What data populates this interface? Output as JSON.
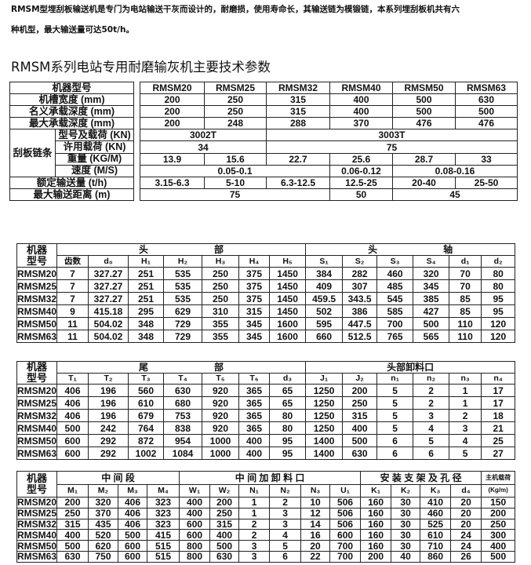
{
  "intro": {
    "lines": [
      "RMSM型埋刮板输送机是专门为电站输送干灰而设计的，耐磨损，使用寿命长，其输送链为模锻链，本系列埋刮板机共有六",
      "种机型，最大输送量可达50t/h。"
    ]
  },
  "title": "RMSM系列电站专用耐磨输灰机主要技术参数",
  "spec_labels": [
    [
      {
        "v": "机器型号",
        "cs": 2
      }
    ],
    [
      {
        "v": "机槽宽度 (mm)",
        "cs": 2
      }
    ],
    [
      {
        "v": "名义承载深度 (mm)",
        "cs": 2
      }
    ],
    [
      {
        "v": "最大承载深度 (mm)",
        "cs": 2
      }
    ],
    [
      {
        "v": "刮板链条",
        "rs": 4
      },
      {
        "v": "型号及载荷 (KN)"
      }
    ],
    [
      {
        "v": "许用载荷 (KN)"
      }
    ],
    [
      {
        "v": "重量 (KG/M)"
      }
    ],
    [
      {
        "v": "速度 (M/S)"
      }
    ],
    [
      {
        "v": "额定输送量 (t/h)",
        "cs": 2
      }
    ],
    [
      {
        "v": "最大输送距离 (m)",
        "cs": 2
      }
    ]
  ],
  "spec_values": [
    [
      "RMSM20",
      "RMSM25",
      "RMSM32",
      "RMSM40",
      "RMSM50",
      "RMSM63"
    ],
    [
      "200",
      "250",
      "315",
      "400",
      "500",
      "630"
    ],
    [
      "200",
      "250",
      "315",
      "400",
      "500",
      "500"
    ],
    [
      "200",
      "248",
      "288",
      "370",
      "476",
      "476"
    ],
    [
      {
        "v": "3002T",
        "cs": 2
      },
      {
        "v": "3003T",
        "cs": 4
      }
    ],
    [
      {
        "v": "34",
        "cs": 2
      },
      {
        "v": "75",
        "cs": 4
      }
    ],
    [
      "13.9",
      "15.6",
      "22.7",
      "25.6",
      "28.7",
      "33"
    ],
    [
      {
        "v": "0.05-0.1",
        "cs": 3
      },
      {
        "v": "0.06-0.12"
      },
      {
        "v": "0.08-0.16",
        "cs": 2
      }
    ],
    [
      "3.15-6.3",
      "5-10",
      "6.3-12.5",
      "12.5-25",
      "20-40",
      "25-50"
    ],
    [
      {
        "v": "75",
        "cs": 3
      },
      {
        "v": "50"
      },
      {
        "v": "45",
        "cs": 2
      }
    ]
  ],
  "head_table": {
    "header1": [
      {
        "v": "机器\n型号",
        "rs": 2
      },
      {
        "v": "头　　　　　　　部",
        "cs": 7
      },
      {
        "v": "头　　　　　　　轴",
        "cs": 6
      }
    ],
    "header2": [
      "齿数",
      "d₀",
      "H₁",
      "H₂",
      "H₃",
      "H₄",
      "H₅",
      "S₁",
      "S₂",
      "S₃",
      "S₄",
      "d₁",
      "d₂"
    ],
    "rows": [
      [
        "RMSM20",
        "7",
        "327.27",
        "251",
        "535",
        "250",
        "375",
        "1450",
        "384",
        "282",
        "460",
        "320",
        "70",
        "80"
      ],
      [
        "RMSM25",
        "7",
        "327.27",
        "251",
        "535",
        "250",
        "375",
        "1450",
        "409",
        "307",
        "485",
        "345",
        "70",
        "80"
      ],
      [
        "RMSM32",
        "7",
        "327.27",
        "251",
        "535",
        "250",
        "375",
        "1450",
        "459.5",
        "343.5",
        "545",
        "385",
        "85",
        "95"
      ],
      [
        "RMSM40",
        "9",
        "415.18",
        "295",
        "629",
        "310",
        "315",
        "1450",
        "502",
        "386",
        "585",
        "427",
        "85",
        "95"
      ],
      [
        "RMSM50",
        "11",
        "504.02",
        "348",
        "729",
        "355",
        "345",
        "1600",
        "595",
        "447.5",
        "700",
        "500",
        "110",
        "120"
      ],
      [
        "RMSM63",
        "11",
        "504.02",
        "348",
        "729",
        "355",
        "345",
        "1600",
        "660",
        "512.5",
        "765",
        "565",
        "110",
        "120"
      ]
    ]
  },
  "tail_table": {
    "header1": [
      {
        "v": "机器\n型号",
        "rs": 2
      },
      {
        "v": "尾　　　　　　　部",
        "cs": 7
      },
      {
        "v": "头部卸料口",
        "cs": 6
      }
    ],
    "header2": [
      "T₁",
      "T₂",
      "T₃",
      "T₄",
      "T₅",
      "T₆",
      "d₃",
      "J₁",
      "J₂",
      "n₁",
      "n₂",
      "n₃",
      "n₄"
    ],
    "rows": [
      [
        "RMSM20",
        "406",
        "196",
        "560",
        "630",
        "920",
        "365",
        "65",
        "1250",
        "200",
        "5",
        "2",
        "1",
        "17"
      ],
      [
        "RMSM25",
        "406",
        "196",
        "610",
        "680",
        "920",
        "365",
        "65",
        "1250",
        "250",
        "5",
        "2",
        "1",
        "17"
      ],
      [
        "RMSM32",
        "406",
        "196",
        "679",
        "753",
        "920",
        "365",
        "80",
        "1250",
        "315",
        "5",
        "3",
        "2",
        "18"
      ],
      [
        "RMSM40",
        "500",
        "242",
        "764",
        "838",
        "920",
        "365",
        "80",
        "1250",
        "400",
        "5",
        "4",
        "3",
        "21"
      ],
      [
        "RMSM50",
        "600",
        "292",
        "872",
        "954",
        "1000",
        "400",
        "95",
        "1400",
        "500",
        "6",
        "5",
        "4",
        "25"
      ],
      [
        "RMSM63",
        "600",
        "292",
        "1002",
        "1084",
        "1000",
        "400",
        "95",
        "1400",
        "630",
        "6",
        "6",
        "5",
        "27"
      ]
    ]
  },
  "mid_table": {
    "header1": [
      {
        "v": "机器\n型号",
        "rs": 2
      },
      {
        "v": "中 间 段",
        "cs": 4
      },
      {
        "v": "中 间 加 卸 料 口",
        "cs": 6
      },
      {
        "v": "安 装 支 架 及 孔 径",
        "cs": 4
      },
      {
        "v": "主机载荷",
        "small": true
      }
    ],
    "header2": [
      "M₁",
      "M₂",
      "M₃",
      "M₄",
      "W₁",
      "W₂",
      "N₁",
      "N₂",
      "N₃",
      "U₁",
      "K₁",
      "K₂",
      "K₃",
      "d₄",
      {
        "v": "(Kg/m)",
        "small": true
      }
    ],
    "rows": [
      [
        "RMSM20",
        "200",
        "320",
        "406",
        "323",
        "400",
        "200",
        "1",
        "2",
        "10",
        "506",
        "160",
        "30",
        "410",
        "20",
        "150"
      ],
      [
        "RMSM25",
        "250",
        "370",
        "406",
        "323",
        "400",
        "250",
        "1",
        "3",
        "12",
        "506",
        "160",
        "30",
        "460",
        "20",
        "200"
      ],
      [
        "RMSM32",
        "315",
        "435",
        "406",
        "323",
        "600",
        "315",
        "2",
        "3",
        "14",
        "506",
        "160",
        "30",
        "525",
        "20",
        "250"
      ],
      [
        "RMSM40",
        "400",
        "520",
        "500",
        "415",
        "600",
        "400",
        "2",
        "4",
        "16",
        "600",
        "160",
        "30",
        "610",
        "24",
        "300"
      ],
      [
        "RMSM50",
        "500",
        "620",
        "600",
        "515",
        "800",
        "500",
        "3",
        "5",
        "20",
        "700",
        "160",
        "30",
        "710",
        "24",
        "400"
      ],
      [
        "RMSM63",
        "630",
        "750",
        "600",
        "515",
        "800",
        "630",
        "3",
        "6",
        "22",
        "700",
        "200",
        "40",
        "860",
        "26",
        "500"
      ]
    ]
  }
}
